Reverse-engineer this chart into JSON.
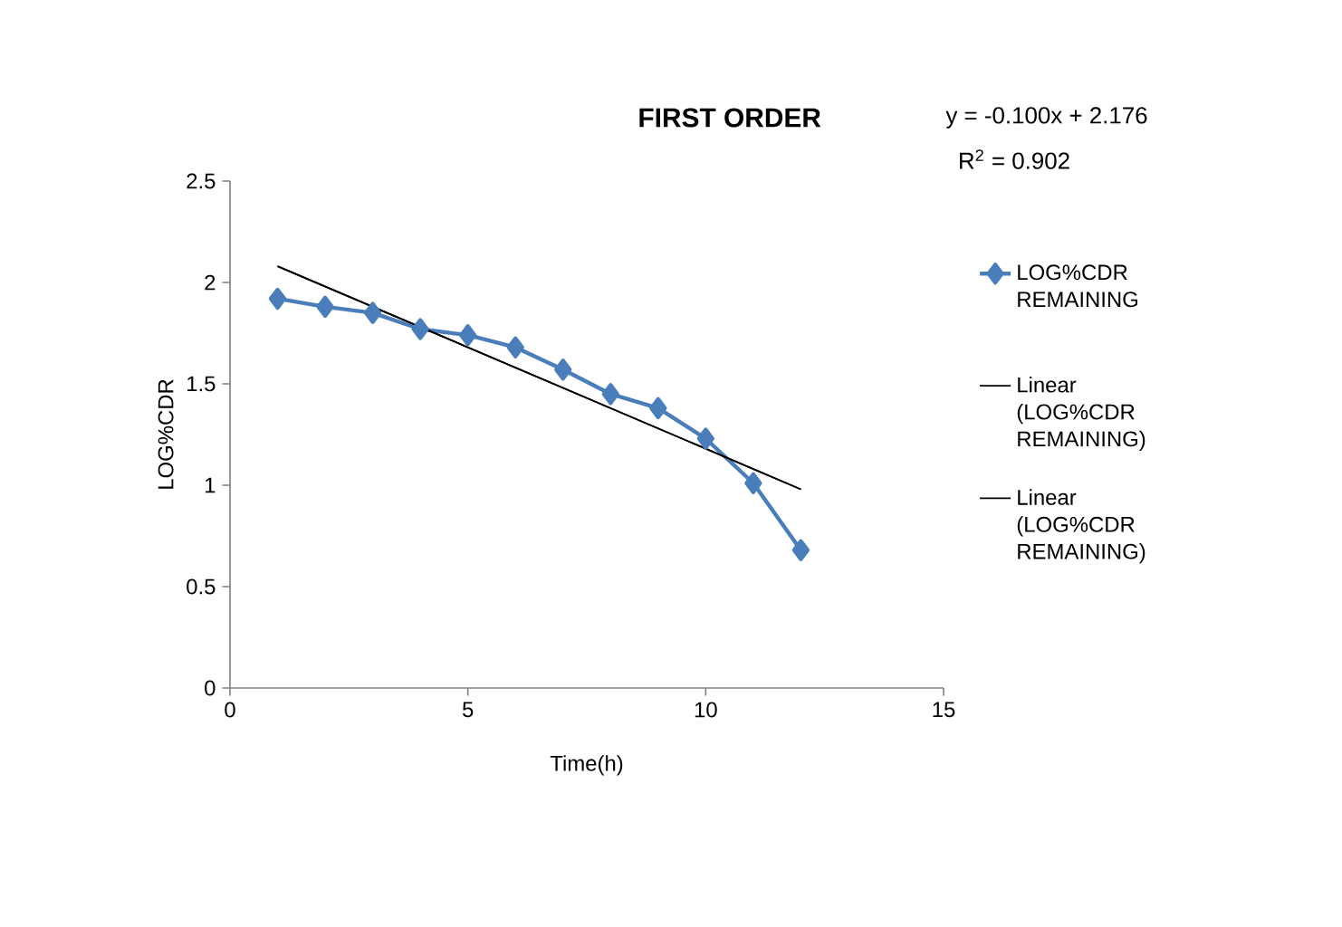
{
  "chart_data": {
    "type": "line",
    "title": "FIRST ORDER",
    "xlabel": "Time(h)",
    "ylabel": "LOG%CDR",
    "annotations": [
      "y = -0.100x + 2.176",
      "R$^{2}$ = 0.902"
    ],
    "xlim": [
      0,
      15
    ],
    "xticks": [
      0,
      5,
      10,
      15
    ],
    "ylim": [
      0,
      2.5
    ],
    "yticks": [
      0,
      {
        "value": 0.5,
        "label": "0.5"
      },
      1,
      {
        "value": 1.5,
        "label": "1.5"
      },
      2,
      {
        "value": 2.5,
        "label": "2.5"
      }
    ],
    "grid": false,
    "legend": "right",
    "marker": "diamond",
    "line_style": "solid",
    "series": [
      {
        "name": "LOG%CDR REMAINING",
        "color": "#4a7ebb",
        "x": [
          1,
          2,
          3,
          4,
          5,
          6,
          7,
          8,
          9,
          10,
          11,
          12
        ],
        "values": [
          1.92,
          1.88,
          1.85,
          1.77,
          1.74,
          1.68,
          1.57,
          1.45,
          1.38,
          1.23,
          1.01,
          0.68
        ]
      },
      {
        "name": "Linear (LOG%CDR REMAINING)",
        "color": "#000000",
        "marker": "none",
        "x": [
          1,
          12
        ],
        "values": [
          2.08,
          0.98
        ]
      },
      {
        "name": "Linear (LOG%CDR REMAINING)",
        "color": "#000000",
        "marker": "none",
        "x": [
          1,
          12
        ],
        "values": [
          2.08,
          0.98
        ]
      }
    ]
  }
}
